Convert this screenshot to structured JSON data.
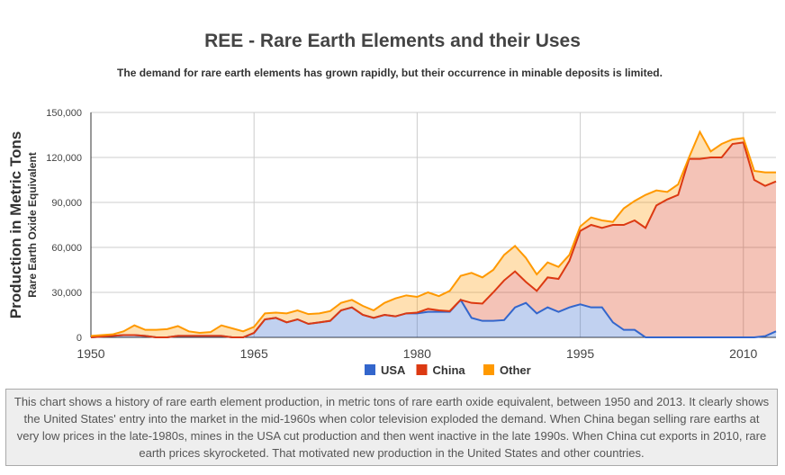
{
  "header": {
    "title": "REE - Rare Earth Elements and their Uses",
    "subtitle": "The demand for rare earth elements has grown rapidly, but their occurrence in minable deposits is limited."
  },
  "chart_data": {
    "type": "area",
    "stacked": true,
    "ylabel": "Production in Metric Tons",
    "ylabel2": "Rare Earth Oxide Equivalent",
    "xlim": [
      1950,
      2013
    ],
    "ylim": [
      0,
      150000
    ],
    "x_ticks": [
      "1950",
      "1965",
      "1980",
      "1995",
      "2010"
    ],
    "y_ticks": [
      "0",
      "30,000",
      "60,000",
      "90,000",
      "120,000",
      "150,000"
    ],
    "grid": true,
    "legend": "bottom",
    "x_start": 1950,
    "series": [
      {
        "name": "USA",
        "color": "#3366cc",
        "values": [
          0,
          500,
          1000,
          1500,
          1500,
          1000,
          0,
          0,
          1000,
          1000,
          1000,
          1000,
          1000,
          0,
          0,
          3000,
          12000,
          13000,
          10000,
          12000,
          9000,
          10000,
          11000,
          18000,
          20000,
          15000,
          13000,
          15000,
          14000,
          16000,
          16000,
          17000,
          17000,
          17000,
          25000,
          13000,
          11000,
          11000,
          11500,
          20000,
          23000,
          16000,
          20000,
          17000,
          20000,
          22000,
          20000,
          20000,
          10000,
          5000,
          5000,
          0,
          0,
          0,
          0,
          0,
          0,
          0,
          0,
          0,
          0,
          0,
          800,
          4000
        ]
      },
      {
        "name": "China",
        "color": "#dc3912",
        "values": [
          0,
          0,
          0,
          0,
          0,
          0,
          0,
          0,
          0,
          0,
          0,
          0,
          0,
          0,
          0,
          0,
          0,
          0,
          0,
          0,
          0,
          0,
          0,
          0,
          0,
          0,
          0,
          0,
          0,
          0,
          500,
          2000,
          1000,
          500,
          0,
          10000,
          11500,
          19000,
          26500,
          24000,
          14000,
          15000,
          20000,
          22000,
          31000,
          49000,
          55000,
          53000,
          65000,
          70000,
          73000,
          73000,
          88000,
          92000,
          95000,
          119000,
          119000,
          120000,
          120000,
          129000,
          130000,
          105000,
          100200,
          100000
        ]
      },
      {
        "name": "Other",
        "color": "#ff9900",
        "values": [
          1000,
          1000,
          1000,
          2500,
          6500,
          4000,
          5000,
          5500,
          6500,
          3000,
          2000,
          2500,
          7000,
          6000,
          4000,
          4000,
          4000,
          3500,
          6000,
          6000,
          6500,
          6000,
          6500,
          5000,
          5000,
          6000,
          5000,
          8000,
          12000,
          12000,
          10500,
          11000,
          9500,
          13500,
          16000,
          20000,
          17500,
          15000,
          17000,
          17000,
          16000,
          11000,
          10000,
          8000,
          4000,
          3000,
          5000,
          5000,
          2000,
          11000,
          13000,
          22000,
          10000,
          5000,
          7000,
          1000,
          18000,
          4000,
          9000,
          3000,
          3000,
          6000,
          9000,
          6000
        ]
      }
    ]
  },
  "caption": "This chart shows a history of rare earth element production, in metric tons of rare earth oxide equivalent, between 1950 and 2013. It clearly shows the United States' entry into the market in the mid-1960s when color television exploded the demand. When China began selling rare earths at very low prices in the late-1980s, mines in the USA cut production and then went inactive in the late 1990s. When China cut exports in 2010, rare earth prices skyrocketed. That motivated new production in the United States and other countries."
}
